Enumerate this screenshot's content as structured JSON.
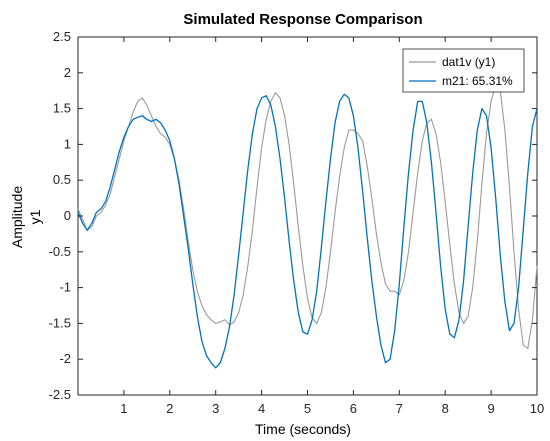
{
  "chart_data": {
    "type": "line",
    "title": "Simulated Response Comparison",
    "xlabel": "Time (seconds)",
    "ylabel": "Amplitude",
    "channel_label": "y1",
    "xlim": [
      0,
      10
    ],
    "ylim": [
      -2.5,
      2.5
    ],
    "x_ticks": [
      1,
      2,
      3,
      4,
      5,
      6,
      7,
      8,
      9,
      10
    ],
    "x_tick_labels": [
      "1",
      "2",
      "3",
      "4",
      "5",
      "6",
      "7",
      "8",
      "9",
      "10"
    ],
    "y_ticks": [
      2.5,
      2,
      1.5,
      1,
      0.5,
      0,
      -0.5,
      -1,
      -1.5,
      -2,
      -2.5
    ],
    "y_tick_labels": [
      "2.5",
      "2",
      "1.5",
      "1",
      "0.5",
      "0",
      "-0.5",
      "-1",
      "-1.5",
      "-2",
      "-2.5"
    ],
    "grid": false,
    "legend_position": "top-right",
    "series": [
      {
        "name": "dat1v (y1)",
        "color": "#9a9a9a",
        "x": [
          0,
          0.1,
          0.2,
          0.3,
          0.4,
          0.5,
          0.6,
          0.7,
          0.8,
          0.9,
          1.0,
          1.1,
          1.2,
          1.3,
          1.4,
          1.5,
          1.6,
          1.7,
          1.8,
          1.9,
          2.0,
          2.1,
          2.2,
          2.3,
          2.4,
          2.5,
          2.6,
          2.7,
          2.8,
          2.9,
          3.0,
          3.1,
          3.2,
          3.3,
          3.4,
          3.5,
          3.6,
          3.7,
          3.8,
          3.9,
          4.0,
          4.1,
          4.2,
          4.3,
          4.4,
          4.5,
          4.6,
          4.7,
          4.8,
          4.9,
          5.0,
          5.1,
          5.2,
          5.3,
          5.4,
          5.5,
          5.6,
          5.7,
          5.8,
          5.9,
          6.0,
          6.1,
          6.2,
          6.3,
          6.4,
          6.5,
          6.6,
          6.7,
          6.8,
          6.9,
          7.0,
          7.1,
          7.2,
          7.3,
          7.4,
          7.5,
          7.6,
          7.7,
          7.8,
          7.9,
          8.0,
          8.1,
          8.2,
          8.3,
          8.4,
          8.5,
          8.6,
          8.7,
          8.8,
          8.9,
          9.0,
          9.1,
          9.2,
          9.3,
          9.4,
          9.5,
          9.6,
          9.7,
          9.8,
          9.9,
          10.0
        ],
        "y": [
          0.1,
          -0.05,
          -0.2,
          -0.15,
          0.0,
          0.05,
          0.15,
          0.3,
          0.55,
          0.8,
          1.05,
          1.25,
          1.45,
          1.6,
          1.65,
          1.55,
          1.4,
          1.25,
          1.15,
          1.1,
          1.0,
          0.8,
          0.5,
          0.1,
          -0.35,
          -0.75,
          -1.05,
          -1.25,
          -1.38,
          -1.45,
          -1.5,
          -1.48,
          -1.45,
          -1.52,
          -1.48,
          -1.35,
          -1.1,
          -0.7,
          -0.2,
          0.4,
          0.95,
          1.35,
          1.6,
          1.72,
          1.65,
          1.4,
          1.0,
          0.45,
          -0.15,
          -0.7,
          -1.15,
          -1.42,
          -1.5,
          -1.35,
          -1.0,
          -0.5,
          0.05,
          0.55,
          0.95,
          1.2,
          1.2,
          1.15,
          1.05,
          0.7,
          0.25,
          -0.25,
          -0.65,
          -0.95,
          -1.05,
          -1.05,
          -1.1,
          -0.9,
          -0.5,
          0.05,
          0.6,
          1.05,
          1.3,
          1.35,
          1.15,
          0.75,
          0.2,
          -0.4,
          -0.95,
          -1.35,
          -1.5,
          -1.4,
          -1.0,
          -0.35,
          0.45,
          1.15,
          1.6,
          1.85,
          1.75,
          1.2,
          0.4,
          -0.5,
          -1.3,
          -1.8,
          -1.85,
          -1.45,
          -0.7
        ],
        "note": ""
      },
      {
        "name": "m21: 65.31%",
        "color": "#0072bd",
        "x": [
          0,
          0.1,
          0.2,
          0.3,
          0.4,
          0.5,
          0.6,
          0.7,
          0.8,
          0.9,
          1.0,
          1.1,
          1.2,
          1.3,
          1.4,
          1.5,
          1.6,
          1.7,
          1.8,
          1.9,
          2.0,
          2.1,
          2.2,
          2.3,
          2.4,
          2.5,
          2.6,
          2.7,
          2.8,
          2.9,
          3.0,
          3.1,
          3.2,
          3.3,
          3.4,
          3.5,
          3.6,
          3.7,
          3.8,
          3.9,
          4.0,
          4.1,
          4.2,
          4.3,
          4.4,
          4.5,
          4.6,
          4.7,
          4.8,
          4.9,
          5.0,
          5.1,
          5.2,
          5.3,
          5.4,
          5.5,
          5.6,
          5.7,
          5.8,
          5.9,
          6.0,
          6.1,
          6.2,
          6.3,
          6.4,
          6.5,
          6.6,
          6.7,
          6.8,
          6.9,
          7.0,
          7.1,
          7.2,
          7.3,
          7.4,
          7.5,
          7.6,
          7.7,
          7.8,
          7.9,
          8.0,
          8.1,
          8.2,
          8.3,
          8.4,
          8.5,
          8.6,
          8.7,
          8.8,
          8.9,
          9.0,
          9.1,
          9.2,
          9.3,
          9.4,
          9.5,
          9.6,
          9.7,
          9.8,
          9.9,
          10.0
        ],
        "y": [
          0.05,
          -0.1,
          -0.2,
          -0.1,
          0.05,
          0.1,
          0.2,
          0.4,
          0.65,
          0.9,
          1.1,
          1.25,
          1.35,
          1.38,
          1.4,
          1.35,
          1.32,
          1.35,
          1.3,
          1.2,
          1.05,
          0.8,
          0.45,
          0.0,
          -0.45,
          -0.95,
          -1.4,
          -1.75,
          -1.95,
          -2.05,
          -2.12,
          -2.05,
          -1.85,
          -1.55,
          -1.1,
          -0.55,
          0.05,
          0.65,
          1.15,
          1.5,
          1.65,
          1.68,
          1.55,
          1.25,
          0.8,
          0.25,
          -0.35,
          -0.9,
          -1.35,
          -1.62,
          -1.65,
          -1.45,
          -1.05,
          -0.45,
          0.2,
          0.8,
          1.3,
          1.6,
          1.7,
          1.65,
          1.4,
          0.95,
          0.35,
          -0.3,
          -0.9,
          -1.4,
          -1.8,
          -2.05,
          -2.0,
          -1.6,
          -0.95,
          -0.15,
          0.6,
          1.2,
          1.6,
          1.6,
          1.3,
          0.75,
          0.05,
          -0.7,
          -1.3,
          -1.65,
          -1.7,
          -1.45,
          -0.9,
          -0.15,
          0.6,
          1.2,
          1.5,
          1.4,
          0.95,
          0.25,
          -0.55,
          -1.2,
          -1.6,
          -1.5,
          -1.0,
          -0.2,
          0.6,
          1.25,
          1.5
        ],
        "note": ""
      }
    ]
  }
}
